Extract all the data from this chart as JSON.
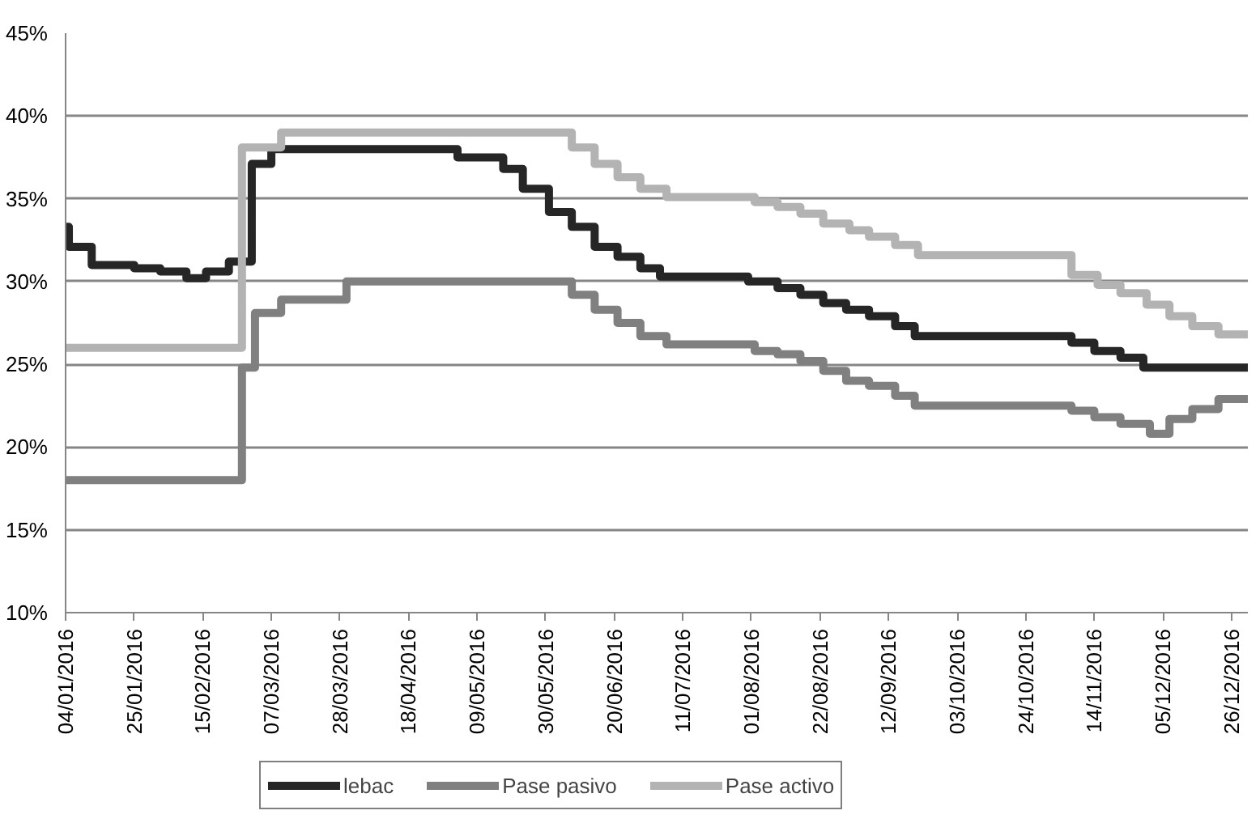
{
  "chart_data": {
    "type": "step",
    "xlim": [
      "2016-01-04",
      "2016-12-31"
    ],
    "xticks": [
      {
        "value": "2016-01-04",
        "label": "04/01/2016"
      },
      {
        "value": "2016-01-25",
        "label": "25/01/2016"
      },
      {
        "value": "2016-02-15",
        "label": "15/02/2016"
      },
      {
        "value": "2016-03-07",
        "label": "07/03/2016"
      },
      {
        "value": "2016-03-28",
        "label": "28/03/2016"
      },
      {
        "value": "2016-04-18",
        "label": "18/04/2016"
      },
      {
        "value": "2016-05-09",
        "label": "09/05/2016"
      },
      {
        "value": "2016-05-30",
        "label": "30/05/2016"
      },
      {
        "value": "2016-06-20",
        "label": "20/06/2016"
      },
      {
        "value": "2016-07-11",
        "label": "11/07/2016"
      },
      {
        "value": "2016-08-01",
        "label": "01/08/2016"
      },
      {
        "value": "2016-08-22",
        "label": "22/08/2016"
      },
      {
        "value": "2016-09-12",
        "label": "12/09/2016"
      },
      {
        "value": "2016-10-03",
        "label": "03/10/2016"
      },
      {
        "value": "2016-10-24",
        "label": "24/10/2016"
      },
      {
        "value": "2016-11-14",
        "label": "14/11/2016"
      },
      {
        "value": "2016-12-05",
        "label": "05/12/2016"
      },
      {
        "value": "2016-12-26",
        "label": "26/12/2016"
      }
    ],
    "ylim": [
      10,
      45
    ],
    "yticks": [
      {
        "value": 10,
        "label": "10%"
      },
      {
        "value": 15,
        "label": "15%"
      },
      {
        "value": 20,
        "label": "20%"
      },
      {
        "value": 25,
        "label": "25%"
      },
      {
        "value": 30,
        "label": "30%"
      },
      {
        "value": 35,
        "label": "35%"
      },
      {
        "value": 40,
        "label": "40%"
      },
      {
        "value": 45,
        "label": "45%"
      }
    ],
    "grid": "y",
    "legend": "bottom",
    "line_style": "solid",
    "marker": "none",
    "series": [
      {
        "name": "lebac",
        "color": "#262626",
        "x": [
          "2016-01-04",
          "2016-01-05",
          "2016-01-12",
          "2016-01-25",
          "2016-02-02",
          "2016-02-10",
          "2016-02-16",
          "2016-02-23",
          "2016-03-01",
          "2016-03-07",
          "2016-05-03",
          "2016-05-17",
          "2016-05-23",
          "2016-05-31",
          "2016-06-07",
          "2016-06-14",
          "2016-06-21",
          "2016-06-28",
          "2016-07-04",
          "2016-07-31",
          "2016-08-09",
          "2016-08-16",
          "2016-08-23",
          "2016-08-30",
          "2016-09-06",
          "2016-09-14",
          "2016-09-20",
          "2016-11-07",
          "2016-11-14",
          "2016-11-22",
          "2016-11-29",
          "2016-12-31"
        ],
        "values": [
          33.3,
          32.1,
          31.0,
          30.8,
          30.6,
          30.2,
          30.6,
          31.2,
          37.1,
          38.0,
          37.5,
          36.8,
          35.6,
          34.2,
          33.3,
          32.1,
          31.5,
          30.8,
          30.3,
          30.0,
          29.6,
          29.2,
          28.7,
          28.3,
          27.9,
          27.3,
          26.7,
          26.3,
          25.8,
          25.4,
          24.8,
          24.8
        ]
      },
      {
        "name": "Pase pasivo",
        "color": "#808080",
        "x": [
          "2016-01-04",
          "2016-02-27",
          "2016-03-02",
          "2016-03-10",
          "2016-03-30",
          "2016-06-07",
          "2016-06-14",
          "2016-06-21",
          "2016-06-28",
          "2016-07-06",
          "2016-08-02",
          "2016-08-09",
          "2016-08-16",
          "2016-08-23",
          "2016-08-30",
          "2016-09-06",
          "2016-09-14",
          "2016-09-20",
          "2016-11-07",
          "2016-11-14",
          "2016-11-22",
          "2016-12-01",
          "2016-12-07",
          "2016-12-14",
          "2016-12-22",
          "2016-12-31"
        ],
        "values": [
          18.0,
          24.8,
          28.1,
          28.9,
          30.0,
          29.2,
          28.3,
          27.5,
          26.7,
          26.2,
          25.8,
          25.6,
          25.2,
          24.6,
          24.0,
          23.7,
          23.1,
          22.5,
          22.2,
          21.8,
          21.4,
          20.8,
          21.7,
          22.3,
          22.9,
          22.9
        ]
      },
      {
        "name": "Pase activo",
        "color": "#b3b3b3",
        "x": [
          "2016-01-04",
          "2016-02-27",
          "2016-03-10",
          "2016-06-07",
          "2016-06-14",
          "2016-06-21",
          "2016-06-28",
          "2016-07-06",
          "2016-08-02",
          "2016-08-09",
          "2016-08-16",
          "2016-08-23",
          "2016-08-31",
          "2016-09-06",
          "2016-09-14",
          "2016-09-21",
          "2016-11-07",
          "2016-11-15",
          "2016-11-22",
          "2016-11-30",
          "2016-12-07",
          "2016-12-14",
          "2016-12-22",
          "2016-12-31"
        ],
        "values": [
          26.0,
          38.1,
          39.0,
          38.1,
          37.1,
          36.3,
          35.6,
          35.1,
          34.8,
          34.5,
          34.1,
          33.5,
          33.1,
          32.7,
          32.2,
          31.6,
          30.4,
          29.8,
          29.3,
          28.6,
          27.9,
          27.3,
          26.8,
          26.8
        ]
      }
    ]
  }
}
